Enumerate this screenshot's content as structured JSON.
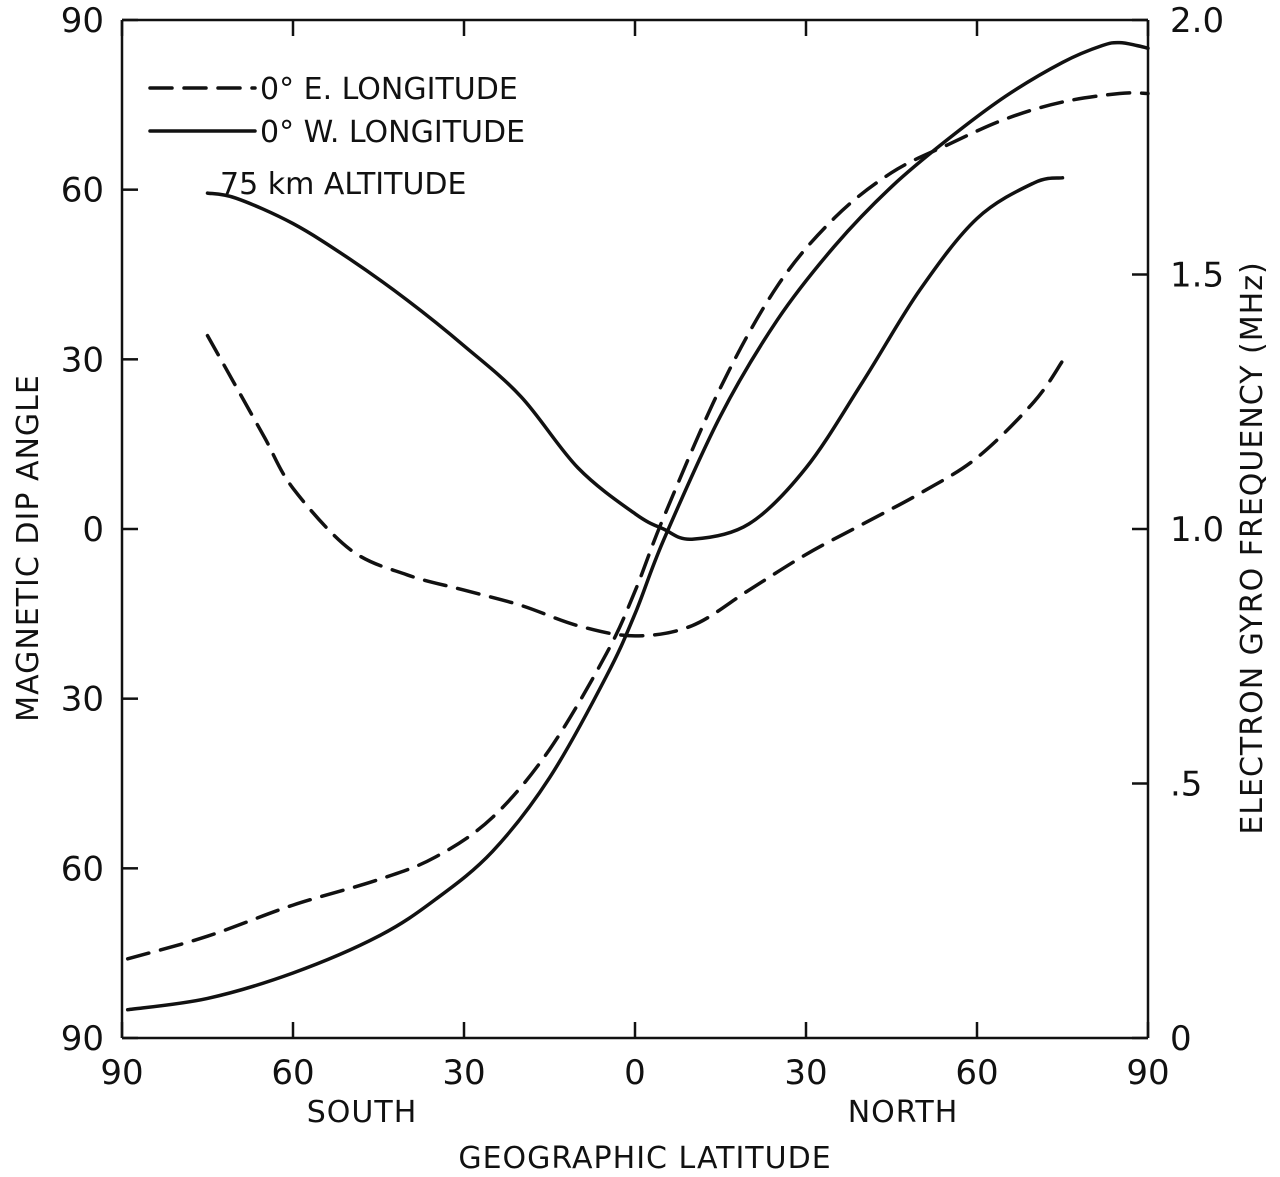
{
  "chart_data": {
    "type": "line",
    "title": "",
    "x_axis": {
      "range": [
        -90,
        90
      ],
      "ticks": [
        -90,
        -60,
        -30,
        0,
        30,
        60,
        90
      ],
      "tick_labels": [
        "90",
        "60",
        "30",
        "0",
        "30",
        "60",
        "90"
      ],
      "south_label": "SOUTH",
      "north_label": "NORTH",
      "label": "GEOGRAPHIC LATITUDE"
    },
    "y_left": {
      "label": "MAGNETIC DIP ANGLE",
      "range": [
        -90,
        90
      ],
      "ticks": [
        90,
        60,
        30,
        0,
        -30,
        -60,
        -90
      ],
      "tick_labels": [
        "90",
        "60",
        "30",
        "0",
        "30",
        "60",
        "90"
      ]
    },
    "y_right": {
      "label": "ELECTRON GYRO FREQUENCY (MHz)",
      "range": [
        0,
        2.0
      ],
      "ticks": [
        0,
        0.5,
        1.0,
        1.5,
        2.0
      ],
      "tick_labels": [
        "0",
        ".5",
        "1.0",
        "1.5",
        "2.0"
      ]
    },
    "legend": {
      "placement": "top-left",
      "entries": [
        {
          "label": "0° E. LONGITUDE",
          "style": "dashed"
        },
        {
          "label": "0° W. LONGITUDE",
          "style": "solid"
        }
      ],
      "note": "75 km ALTITUDE"
    },
    "grid": false,
    "series": [
      {
        "name": "0° E. LONGITUDE",
        "quantity": "dip",
        "axis": "left",
        "style": "dashed",
        "x": [
          -89,
          -75,
          -60,
          -45,
          -35,
          -25,
          -15,
          -5,
          0,
          5,
          15,
          25,
          35,
          45,
          55,
          65,
          75,
          85,
          90
        ],
        "y": [
          -76,
          -72,
          -66.5,
          -62,
          -58,
          -51,
          -39,
          -22,
          -11,
          2,
          25,
          43,
          55,
          63,
          68,
          72.5,
          75.5,
          77,
          77
        ]
      },
      {
        "name": "0° W. LONGITUDE",
        "quantity": "dip",
        "axis": "left",
        "style": "solid",
        "x": [
          -89,
          -75,
          -60,
          -45,
          -35,
          -25,
          -15,
          -5,
          0,
          5,
          15,
          25,
          35,
          45,
          55,
          65,
          75,
          82,
          85,
          88,
          90
        ],
        "y": [
          -85,
          -83,
          -78.5,
          -72,
          -65.5,
          -57,
          -44,
          -26,
          -15,
          -2,
          20,
          37,
          50,
          60.5,
          69,
          76.5,
          82.5,
          85.5,
          86,
          85.5,
          85
        ]
      },
      {
        "name": "0° E. LONGITUDE",
        "quantity": "gyro_frequency",
        "axis": "right",
        "style": "dashed",
        "x": [
          -75,
          -70,
          -65,
          -60,
          -50,
          -40,
          -30,
          -20,
          -10,
          0,
          10,
          20,
          30,
          40,
          50,
          60,
          70,
          75
        ],
        "y": [
          1.38,
          1.28,
          1.18,
          1.08,
          0.96,
          0.91,
          0.88,
          0.85,
          0.81,
          0.79,
          0.81,
          0.88,
          0.95,
          1.01,
          1.07,
          1.14,
          1.25,
          1.33
        ]
      },
      {
        "name": "0° W. LONGITUDE",
        "quantity": "gyro_frequency",
        "axis": "right",
        "style": "solid",
        "x": [
          -75,
          -70,
          -60,
          -50,
          -40,
          -30,
          -20,
          -10,
          0,
          5,
          10,
          20,
          30,
          40,
          50,
          60,
          70,
          75
        ],
        "y": [
          1.66,
          1.65,
          1.6,
          1.53,
          1.45,
          1.36,
          1.26,
          1.12,
          1.03,
          1.0,
          0.98,
          1.01,
          1.12,
          1.29,
          1.47,
          1.61,
          1.68,
          1.69
        ]
      }
    ]
  }
}
